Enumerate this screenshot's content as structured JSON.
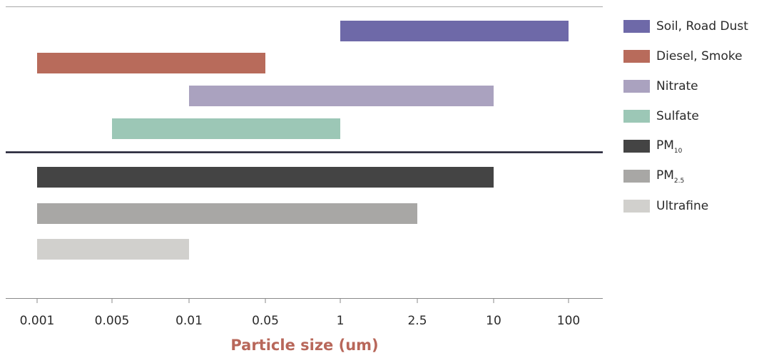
{
  "chart_data": {
    "type": "bar",
    "orientation": "horizontal",
    "xlabel": "Particle size (um)",
    "x_ticks": [
      "0.001",
      "0.005",
      "0.01",
      "0.05",
      "1",
      "2.5",
      "10",
      "100"
    ],
    "upper_group": [
      {
        "name": "Soil, Road Dust",
        "start": "1",
        "end": "100",
        "color": "#6e69a8"
      },
      {
        "name": "Diesel, Smoke",
        "start": "0.001",
        "end": "0.05",
        "color": "#b86b5b"
      },
      {
        "name": "Nitrate",
        "start": "0.01",
        "end": "10",
        "color": "#aaa2bf"
      },
      {
        "name": "Sulfate",
        "start": "0.005",
        "end": "1",
        "color": "#9cc7b6"
      }
    ],
    "lower_group": [
      {
        "name": "PM10",
        "start": "0.001",
        "end": "10",
        "color": "#444444"
      },
      {
        "name": "PM2.5",
        "start": "0.001",
        "end": "2.5",
        "color": "#a8a7a5"
      },
      {
        "name": "Ultrafine",
        "start": "0.001",
        "end": "0.01",
        "color": "#d1d0cd"
      }
    ]
  },
  "legend": {
    "soil": {
      "main": "Soil, Road Dust"
    },
    "diesel": {
      "main": "Diesel, Smoke"
    },
    "nitrate": {
      "main": "Nitrate"
    },
    "sulfate": {
      "main": "Sulfate"
    },
    "pm10": {
      "main": "PM",
      "sub": "10"
    },
    "pm25": {
      "main": "PM",
      "sub": "2.5"
    },
    "ultrafine": {
      "main": "Ultrafine"
    }
  }
}
